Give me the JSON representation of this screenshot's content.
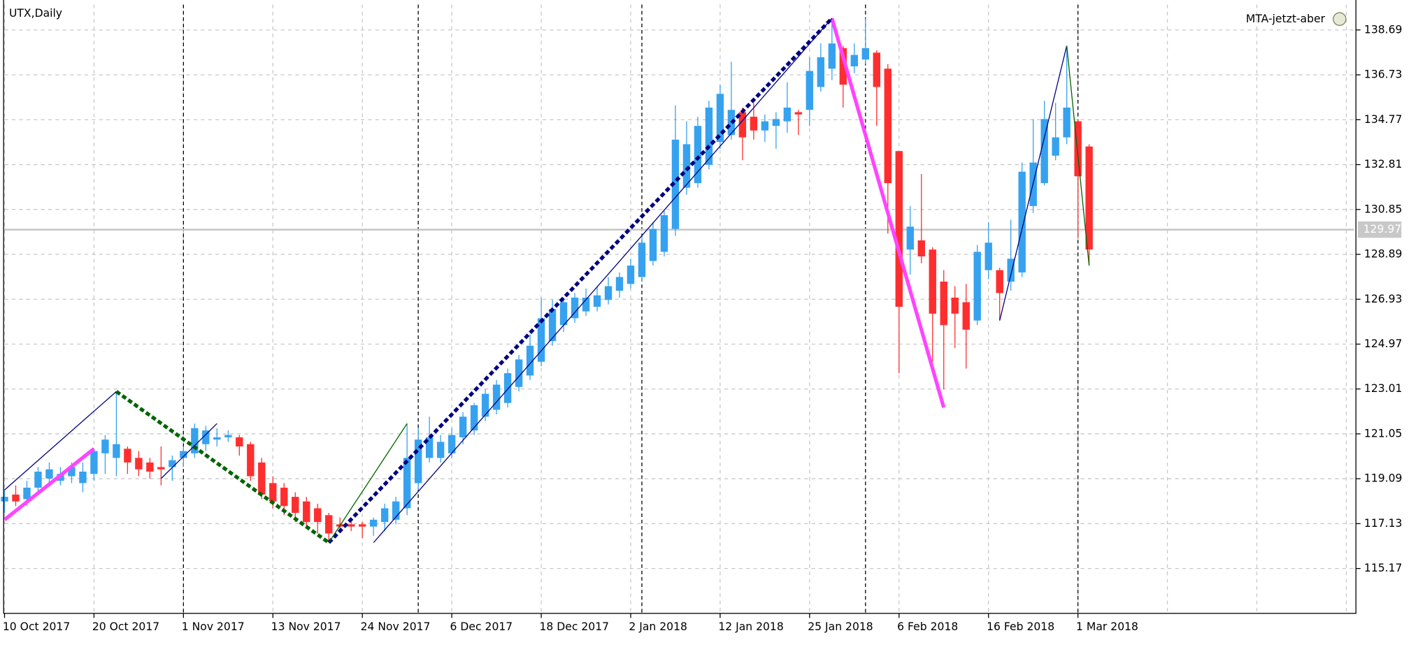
{
  "chart_data": {
    "type": "candlestick",
    "title": "UTX,Daily",
    "indicator_label": "MTA-jetzt-aber",
    "categories": [
      "10 Oct 2017",
      null,
      null,
      null,
      null,
      null,
      null,
      null,
      "20 Oct 2017",
      null,
      null,
      null,
      null,
      null,
      null,
      null,
      "1 Nov 2017",
      null,
      null,
      null,
      null,
      null,
      null,
      null,
      "13 Nov 2017",
      null,
      null,
      null,
      null,
      null,
      null,
      null,
      "24 Nov 2017",
      null,
      null,
      null,
      null,
      null,
      null,
      null,
      "6 Dec 2017",
      null,
      null,
      null,
      null,
      null,
      null,
      null,
      "18 Dec 2017",
      null,
      null,
      null,
      null,
      null,
      null,
      null,
      "2 Jan 2018",
      null,
      null,
      null,
      null,
      null,
      null,
      null,
      "12 Jan 2018",
      null,
      null,
      null,
      null,
      null,
      null,
      null,
      "25 Jan 2018",
      null,
      null,
      null,
      null,
      null,
      null,
      null,
      "6 Feb 2018",
      null,
      null,
      null,
      null,
      null,
      null,
      null,
      "16 Feb 2018",
      null,
      null,
      null,
      null,
      null,
      null,
      null,
      "1 Mar 2018",
      null
    ],
    "open": [
      118.1,
      118.4,
      118.2,
      118.7,
      119.1,
      119.0,
      119.2,
      118.9,
      119.3,
      120.2,
      120.0,
      120.4,
      120.0,
      119.8,
      119.6,
      119.6,
      120.0,
      120.2,
      120.6,
      120.8,
      120.9,
      120.9,
      120.6,
      119.8,
      118.9,
      118.7,
      118.3,
      118.1,
      117.8,
      117.5,
      117.1,
      117.1,
      117.1,
      117.0,
      117.2,
      117.3,
      117.8,
      118.9,
      120.0,
      120.0,
      120.2,
      120.9,
      121.2,
      121.8,
      122.1,
      122.4,
      123.1,
      123.6,
      124.2,
      125.1,
      125.8,
      126.1,
      126.4,
      126.6,
      126.9,
      127.3,
      127.6,
      127.9,
      128.6,
      129.0,
      130.0,
      131.8,
      132.0,
      132.8,
      133.8,
      134.1,
      135.1,
      134.9,
      134.3,
      134.5,
      134.7,
      135.1,
      135.2,
      136.2,
      137.0,
      137.9,
      137.1,
      137.4,
      137.7,
      137.0,
      133.4,
      129.1,
      129.5,
      129.1,
      127.7,
      127.0,
      126.8,
      126.0,
      128.2,
      128.2,
      127.7,
      128.1,
      131.0,
      132.0,
      133.2,
      134.0,
      134.7,
      133.6
    ],
    "high": [
      118.6,
      118.8,
      119.0,
      119.6,
      119.8,
      119.6,
      119.8,
      119.8,
      120.4,
      121.0,
      122.9,
      120.5,
      120.3,
      120.0,
      120.5,
      120.1,
      120.5,
      121.5,
      121.4,
      121.3,
      121.2,
      121.0,
      120.7,
      120.0,
      119.2,
      118.9,
      118.5,
      118.3,
      118.0,
      117.6,
      117.4,
      117.3,
      117.2,
      117.4,
      118.0,
      118.3,
      121.5,
      121.3,
      121.8,
      121.0,
      121.3,
      122.0,
      122.4,
      123.0,
      123.4,
      123.9,
      124.5,
      125.4,
      127.0,
      126.9,
      127.0,
      127.2,
      127.4,
      127.5,
      127.9,
      128.1,
      128.7,
      129.7,
      130.3,
      130.8,
      135.4,
      134.7,
      134.9,
      135.6,
      136.3,
      137.3,
      135.3,
      135.5,
      135.0,
      135.1,
      136.4,
      135.2,
      137.5,
      138.1,
      139.2,
      138.0,
      138.1,
      139.2,
      137.8,
      137.2,
      133.4,
      131.0,
      132.4,
      129.2,
      128.2,
      127.5,
      127.6,
      129.3,
      130.3,
      128.3,
      130.4,
      132.9,
      134.8,
      135.6,
      135.5,
      138.0,
      134.8,
      133.7
    ],
    "low": [
      117.6,
      117.9,
      117.9,
      118.4,
      118.9,
      118.8,
      118.9,
      118.5,
      119.0,
      119.3,
      119.2,
      119.3,
      119.2,
      119.1,
      118.8,
      119.0,
      119.6,
      120.0,
      120.3,
      120.5,
      120.7,
      120.1,
      119.0,
      118.2,
      117.8,
      117.5,
      117.2,
      116.9,
      116.7,
      116.3,
      116.8,
      116.8,
      116.5,
      116.6,
      116.8,
      117.1,
      117.5,
      118.6,
      119.8,
      119.8,
      120.0,
      120.6,
      121.0,
      121.6,
      121.9,
      122.2,
      122.9,
      123.4,
      124.0,
      124.9,
      125.5,
      125.9,
      126.2,
      126.4,
      126.7,
      127.0,
      127.4,
      127.7,
      128.4,
      128.8,
      129.7,
      131.5,
      131.8,
      132.6,
      133.5,
      133.9,
      133.0,
      133.9,
      133.8,
      133.5,
      134.2,
      134.1,
      134.5,
      136.0,
      136.5,
      135.3,
      136.8,
      137.2,
      134.5,
      129.8,
      123.7,
      128.0,
      128.5,
      124.2,
      123.0,
      124.8,
      123.9,
      125.8,
      127.8,
      126.0,
      127.3,
      127.9,
      130.7,
      131.9,
      133.0,
      133.7,
      129.6,
      128.4
    ],
    "close": [
      118.3,
      118.1,
      118.7,
      119.4,
      119.5,
      119.3,
      119.6,
      119.4,
      120.3,
      120.8,
      120.6,
      119.8,
      119.5,
      119.4,
      119.5,
      119.9,
      120.3,
      121.3,
      121.2,
      120.9,
      121.0,
      120.5,
      119.2,
      118.4,
      118.1,
      117.9,
      117.6,
      117.2,
      117.2,
      116.7,
      117.0,
      117.0,
      117.0,
      117.3,
      117.8,
      118.1,
      120.0,
      120.8,
      120.9,
      120.7,
      121.0,
      121.8,
      122.3,
      122.8,
      123.2,
      123.7,
      124.3,
      124.9,
      126.1,
      126.5,
      126.8,
      127.0,
      127.0,
      127.1,
      127.5,
      127.9,
      128.4,
      129.4,
      130.0,
      130.6,
      133.9,
      133.7,
      134.5,
      135.3,
      135.9,
      135.2,
      134.0,
      134.3,
      134.7,
      134.8,
      135.3,
      135.0,
      136.9,
      137.5,
      138.1,
      136.3,
      137.6,
      137.9,
      136.2,
      132.0,
      126.6,
      130.1,
      128.8,
      126.3,
      125.8,
      126.3,
      125.6,
      129.0,
      129.4,
      127.2,
      128.7,
      132.5,
      132.9,
      134.8,
      134.0,
      135.3,
      132.3,
      129.1
    ],
    "up_color": "#36a2ef",
    "down_color": "#ff2e2e",
    "xlim": [
      0,
      120.7
    ],
    "xticks": [
      0,
      8,
      16,
      24,
      32,
      40,
      48,
      56,
      64,
      72,
      80,
      88,
      96,
      104,
      112,
      120
    ],
    "ylim": [
      113.21,
      139.8
    ],
    "yticks": [
      115.17,
      117.13,
      119.09,
      121.05,
      123.01,
      124.97,
      126.93,
      128.89,
      130.85,
      132.81,
      134.77,
      136.73,
      138.69
    ],
    "grid": true,
    "last_price": 129.97,
    "period_separators": [
      16,
      37,
      57,
      77,
      96
    ],
    "lines": [
      {
        "color": "#ff44ff",
        "width": 4,
        "dash": false,
        "x": [
          0,
          8
        ],
        "y": [
          117.3,
          120.4
        ]
      },
      {
        "color": "#ff44ff",
        "width": 4,
        "dash": false,
        "x": [
          74,
          84
        ],
        "y": [
          139.2,
          122.2
        ]
      },
      {
        "color": "#000080",
        "width": 4,
        "dash": true,
        "x": [
          29,
          74
        ],
        "y": [
          116.3,
          139.2
        ]
      },
      {
        "color": "#006400",
        "width": 4,
        "dash": true,
        "x": [
          10,
          29
        ],
        "y": [
          122.9,
          116.3
        ]
      },
      {
        "color": "#000080",
        "width": 1,
        "dash": false,
        "x": [
          0,
          10
        ],
        "y": [
          118.6,
          122.9
        ]
      },
      {
        "color": "#000080",
        "width": 1,
        "dash": false,
        "x": [
          33,
          74
        ],
        "y": [
          116.3,
          139.2
        ]
      },
      {
        "color": "#000080",
        "width": 1,
        "dash": false,
        "x": [
          14,
          19
        ],
        "y": [
          119.1,
          121.5
        ]
      },
      {
        "color": "#000080",
        "width": 1,
        "dash": false,
        "x": [
          89,
          95
        ],
        "y": [
          126.0,
          138.0
        ]
      },
      {
        "color": "#006400",
        "width": 1,
        "dash": false,
        "x": [
          29,
          36
        ],
        "y": [
          116.3,
          121.5
        ]
      },
      {
        "color": "#006400",
        "width": 1,
        "dash": false,
        "x": [
          95,
          97
        ],
        "y": [
          138.0,
          128.4
        ]
      }
    ]
  }
}
